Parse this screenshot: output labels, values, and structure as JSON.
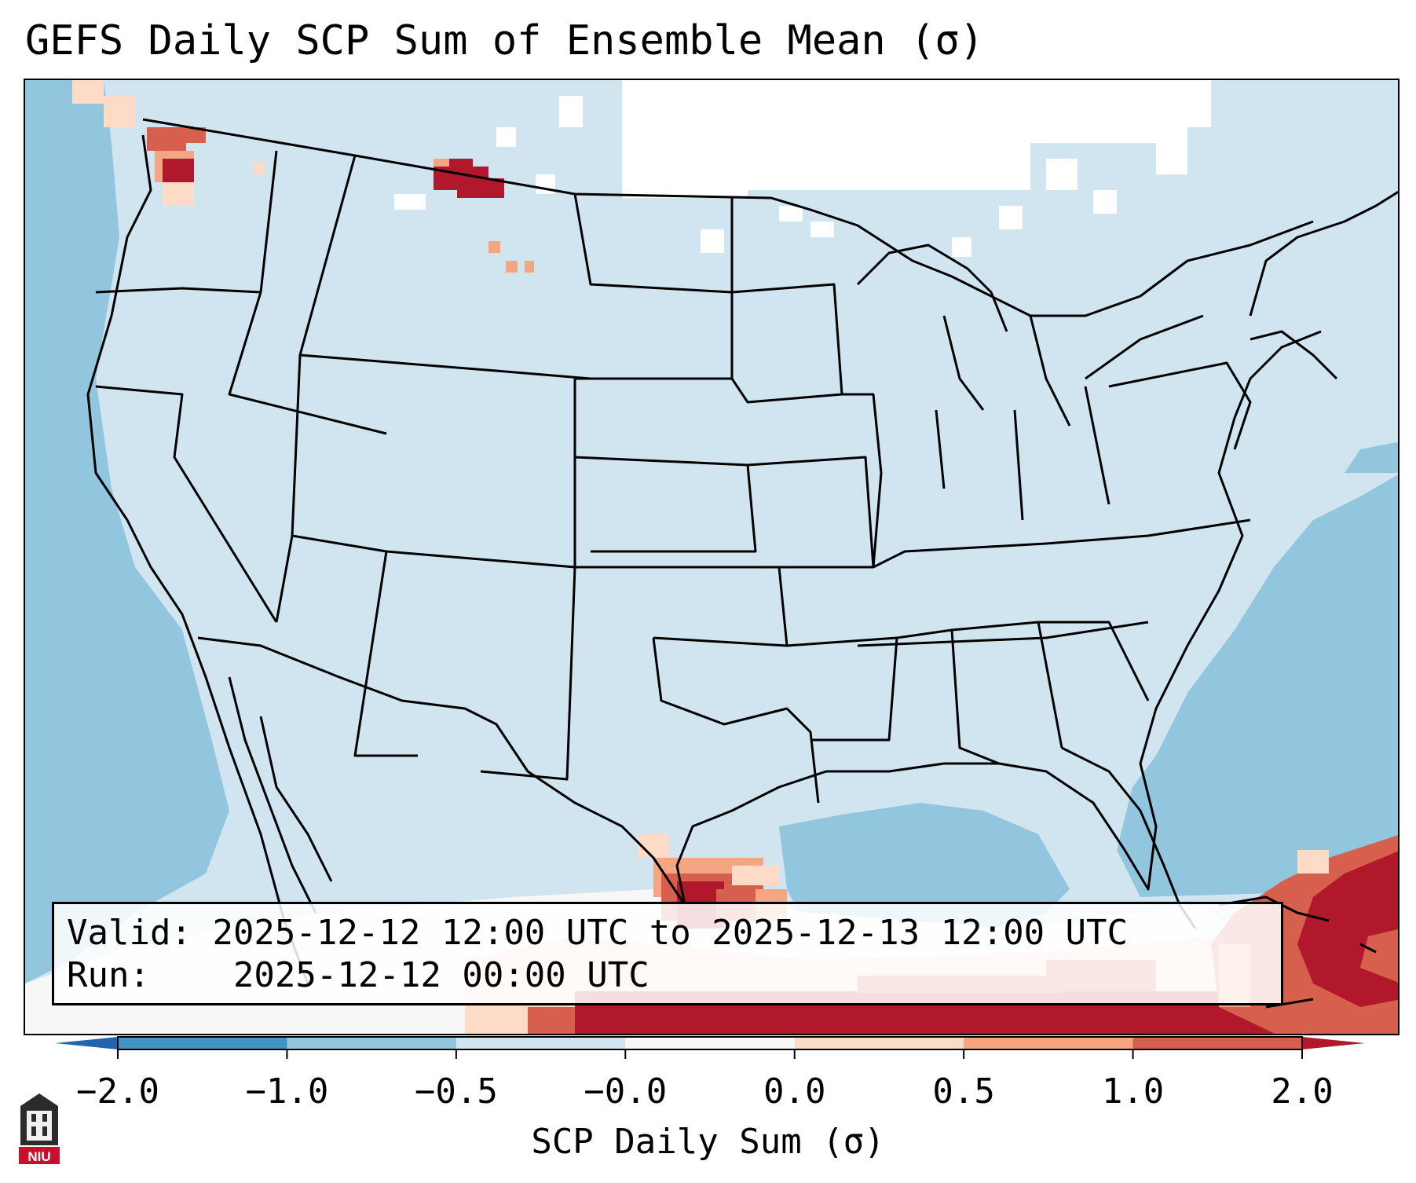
{
  "title": "GEFS Daily SCP Sum of Ensemble Mean (σ)",
  "info": {
    "valid_label": "Valid:",
    "valid_value": "2025-12-12 12:00 UTC to 2025-12-13 12:00 UTC",
    "run_label": "Run:",
    "run_value": "2025-12-12 00:00 UTC"
  },
  "colorbar": {
    "label": "SCP Daily Sum (σ)",
    "ticks": [
      "−2.0",
      "−1.0",
      "−0.5",
      "−0.0",
      "0.0",
      "0.5",
      "1.0",
      "2.0"
    ],
    "bins": [
      {
        "range": [
          -2.0,
          -1.0
        ],
        "color": "#4393c3"
      },
      {
        "range": [
          -1.0,
          -0.5
        ],
        "color": "#92c5de"
      },
      {
        "range": [
          -0.5,
          -0.0
        ],
        "color": "#d1e5f0"
      },
      {
        "range": [
          -0.0,
          0.0
        ],
        "color": "#f7f7f7"
      },
      {
        "range": [
          0.0,
          0.5
        ],
        "color": "#fddbc7"
      },
      {
        "range": [
          0.5,
          1.0
        ],
        "color": "#f4a582"
      },
      {
        "range": [
          1.0,
          2.0
        ],
        "color": "#d6604d"
      }
    ],
    "under_color": "#2166ac",
    "over_color": "#b2182b",
    "extend": "both"
  },
  "logo": {
    "text": "NIU"
  },
  "colors": {
    "background_field": "#d1e5f0",
    "ocean_field": "#92c5de",
    "zero_field": "#ffffff",
    "high": "#b2182b",
    "med": "#d6604d",
    "low": "#f4a582",
    "faint": "#fddbc7",
    "borders": "#000000"
  },
  "icons": [
    "niu-logo-icon"
  ]
}
